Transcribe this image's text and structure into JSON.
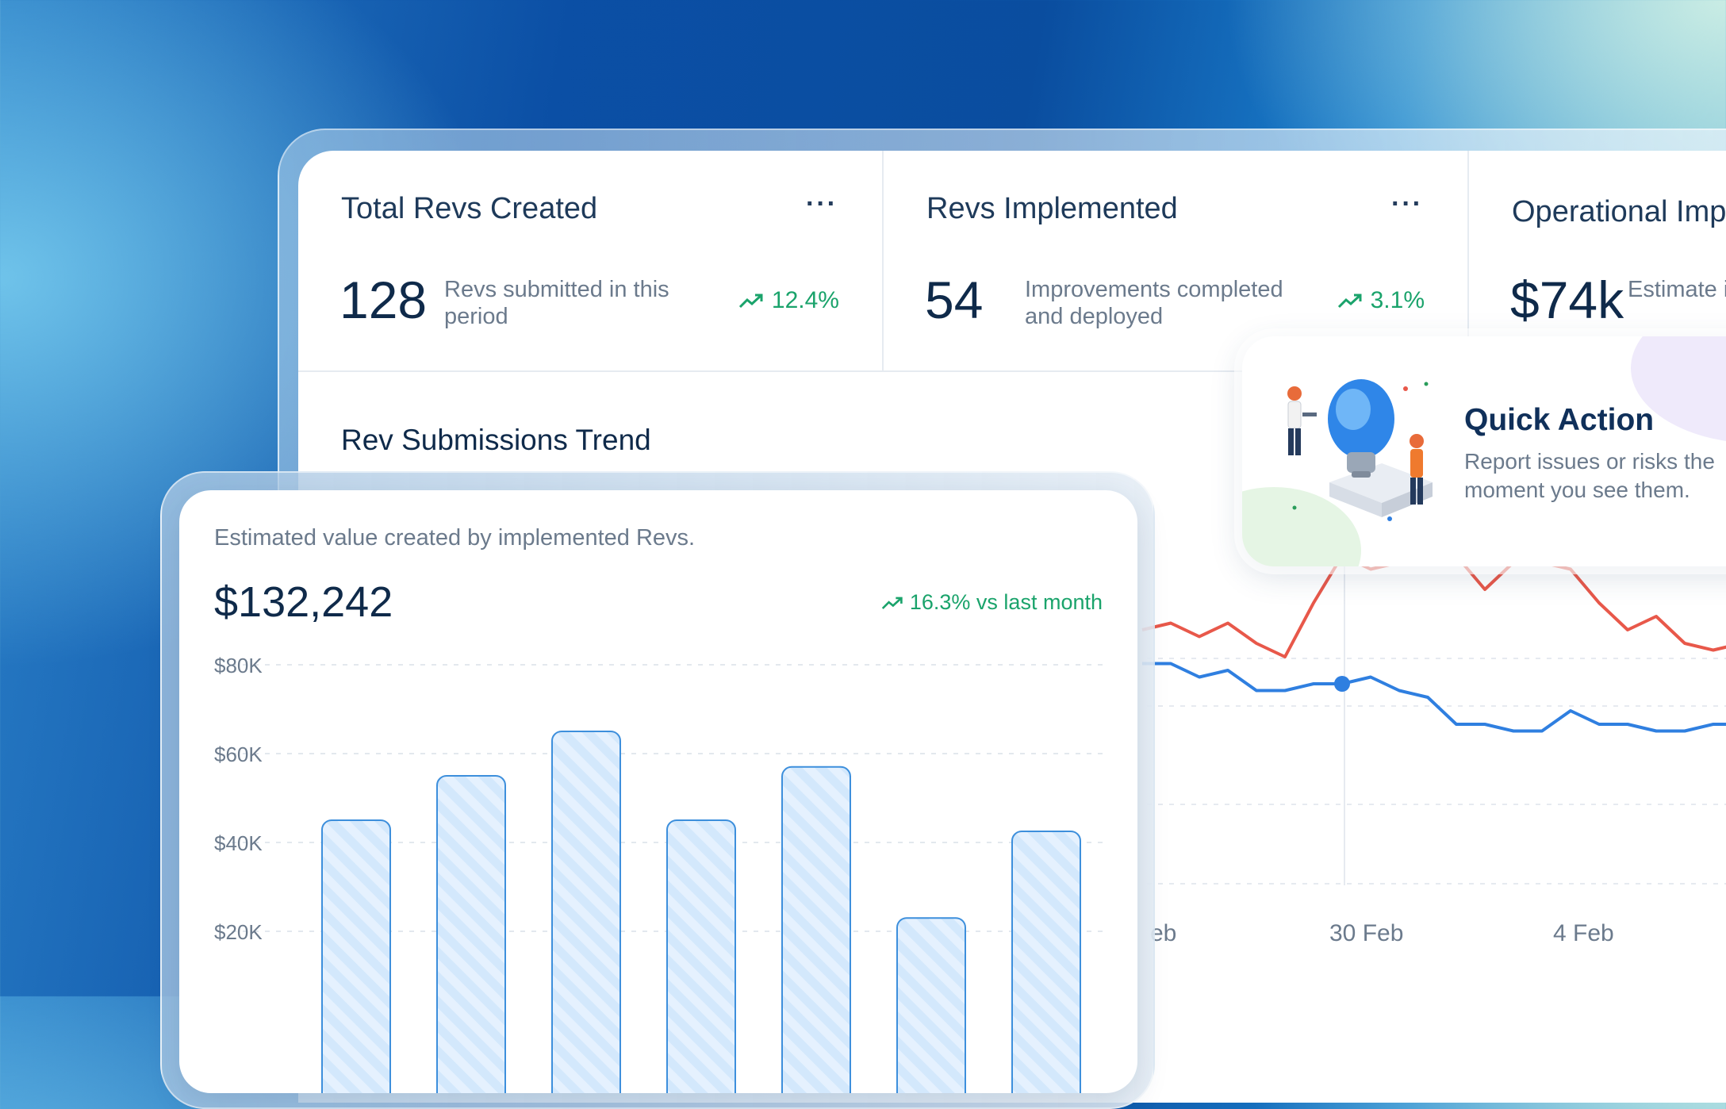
{
  "stats": [
    {
      "title": "Total Revs Created",
      "more": "···",
      "value": "128",
      "desc": "Revs submitted in this period",
      "trend": "12.4%"
    },
    {
      "title": "Revs Implemented",
      "more": "···",
      "value": "54",
      "desc": "Improvements completed and deployed",
      "trend": "3.1%"
    },
    {
      "title": "Operational Impa",
      "value": "$74k",
      "desc": "Estimate impleme"
    }
  ],
  "trend_chart_title": "Rev Submissions Trend",
  "quick_action": {
    "title": "Quick Action",
    "desc": "Report issues or risks the moment you see them."
  },
  "value_card": {
    "subtitle": "Estimated value created by implemented Revs.",
    "value": "$132,242",
    "trend": "16.3% vs last month"
  },
  "colors": {
    "accent_green": "#1aa36b",
    "series_red": "#e8584a",
    "series_blue": "#2f7fe0",
    "bar_fill": "#cfe6fb",
    "bar_stroke": "#3d8fdc"
  },
  "chart_data": [
    {
      "type": "bar",
      "title": "",
      "xlabel": "",
      "ylabel": "",
      "y_ticks": [
        "$80K",
        "$60K",
        "$40K",
        "$20K"
      ],
      "ylim": [
        0,
        80000
      ],
      "categories": [
        "",
        "",
        "",
        "",
        "",
        "",
        ""
      ],
      "values": [
        45000,
        55000,
        65000,
        45000,
        57000,
        23000,
        42500
      ],
      "grid": true
    },
    {
      "type": "line",
      "title": "Rev Submissions Trend",
      "x_ticks": [
        "eb",
        "30 Feb",
        "4 Feb"
      ],
      "series": [
        {
          "color": "#e8584a",
          "values": [
            66,
            67,
            65,
            67,
            64,
            62,
            70,
            77,
            75,
            76,
            77,
            77,
            72,
            76,
            76,
            75,
            70,
            66,
            68,
            64,
            63,
            64
          ]
        },
        {
          "color": "#2f7fe0",
          "values": [
            61,
            61,
            59,
            60,
            57,
            57,
            58,
            58,
            59,
            57,
            56,
            52,
            52,
            51,
            51,
            54,
            52,
            52,
            51,
            51,
            52,
            52
          ]
        }
      ],
      "highlight_index": 7,
      "grid": true
    }
  ]
}
